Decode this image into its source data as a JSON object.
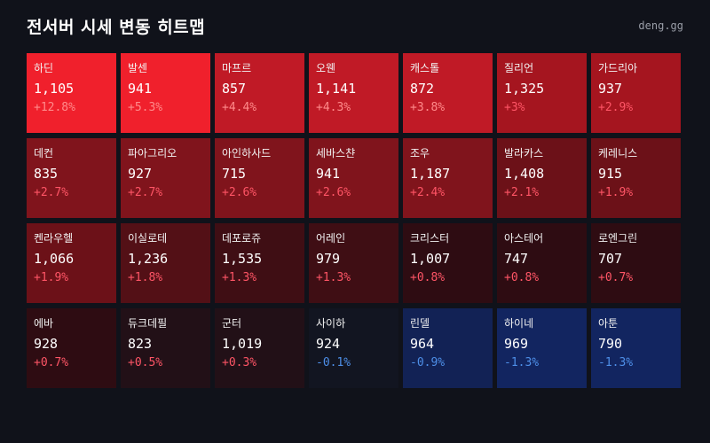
{
  "header": {
    "title": "전서버 시세 변동 히트맵",
    "brand": "deng.gg"
  },
  "colors": {
    "positive_text": "#ff5566",
    "positive_text_on_bright": "#ff8a8a",
    "negative_text": "#4e8fe8",
    "background": "#10121a"
  },
  "tiles": [
    {
      "name": "하딘",
      "price": "1,105",
      "change": "+12.8%",
      "pct": 12.8
    },
    {
      "name": "발센",
      "price": "941",
      "change": "+5.3%",
      "pct": 5.3
    },
    {
      "name": "마프르",
      "price": "857",
      "change": "+4.4%",
      "pct": 4.4
    },
    {
      "name": "오웬",
      "price": "1,141",
      "change": "+4.3%",
      "pct": 4.3
    },
    {
      "name": "캐스톨",
      "price": "872",
      "change": "+3.8%",
      "pct": 3.8
    },
    {
      "name": "질리언",
      "price": "1,325",
      "change": "+3%",
      "pct": 3.0
    },
    {
      "name": "가드리아",
      "price": "937",
      "change": "+2.9%",
      "pct": 2.9
    },
    {
      "name": "데컨",
      "price": "835",
      "change": "+2.7%",
      "pct": 2.7
    },
    {
      "name": "파아그리오",
      "price": "927",
      "change": "+2.7%",
      "pct": 2.7
    },
    {
      "name": "아인하사드",
      "price": "715",
      "change": "+2.6%",
      "pct": 2.6
    },
    {
      "name": "세바스챤",
      "price": "941",
      "change": "+2.6%",
      "pct": 2.6
    },
    {
      "name": "조우",
      "price": "1,187",
      "change": "+2.4%",
      "pct": 2.4
    },
    {
      "name": "발라카스",
      "price": "1,408",
      "change": "+2.1%",
      "pct": 2.1
    },
    {
      "name": "케레니스",
      "price": "915",
      "change": "+1.9%",
      "pct": 1.9
    },
    {
      "name": "켄라우헬",
      "price": "1,066",
      "change": "+1.9%",
      "pct": 1.9
    },
    {
      "name": "이실로테",
      "price": "1,236",
      "change": "+1.8%",
      "pct": 1.8
    },
    {
      "name": "데포로쥬",
      "price": "1,535",
      "change": "+1.3%",
      "pct": 1.3
    },
    {
      "name": "어레인",
      "price": "979",
      "change": "+1.3%",
      "pct": 1.3
    },
    {
      "name": "크리스터",
      "price": "1,007",
      "change": "+0.8%",
      "pct": 0.8
    },
    {
      "name": "아스테어",
      "price": "747",
      "change": "+0.8%",
      "pct": 0.8
    },
    {
      "name": "로엔그린",
      "price": "707",
      "change": "+0.7%",
      "pct": 0.7
    },
    {
      "name": "에바",
      "price": "928",
      "change": "+0.7%",
      "pct": 0.7
    },
    {
      "name": "듀크데필",
      "price": "823",
      "change": "+0.5%",
      "pct": 0.5
    },
    {
      "name": "군터",
      "price": "1,019",
      "change": "+0.3%",
      "pct": 0.3
    },
    {
      "name": "사이하",
      "price": "924",
      "change": "-0.1%",
      "pct": -0.1
    },
    {
      "name": "린델",
      "price": "964",
      "change": "-0.9%",
      "pct": -0.9
    },
    {
      "name": "하이네",
      "price": "969",
      "change": "-1.3%",
      "pct": -1.3
    },
    {
      "name": "아툰",
      "price": "790",
      "change": "-1.3%",
      "pct": -1.3
    }
  ]
}
